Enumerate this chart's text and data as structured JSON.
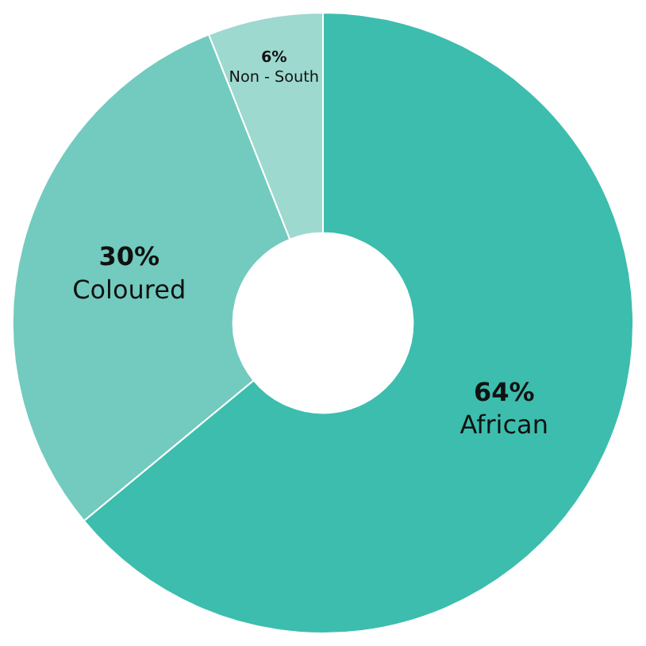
{
  "chart_data": {
    "type": "donut",
    "categories": [
      "African",
      "Coloured",
      "Non - South"
    ],
    "values": [
      64,
      30,
      6
    ],
    "value_labels": [
      "64%",
      "30%",
      "6%"
    ],
    "colors": [
      "#3dbdad",
      "#72cbbe",
      "#9dd9cf"
    ],
    "legend": false
  }
}
